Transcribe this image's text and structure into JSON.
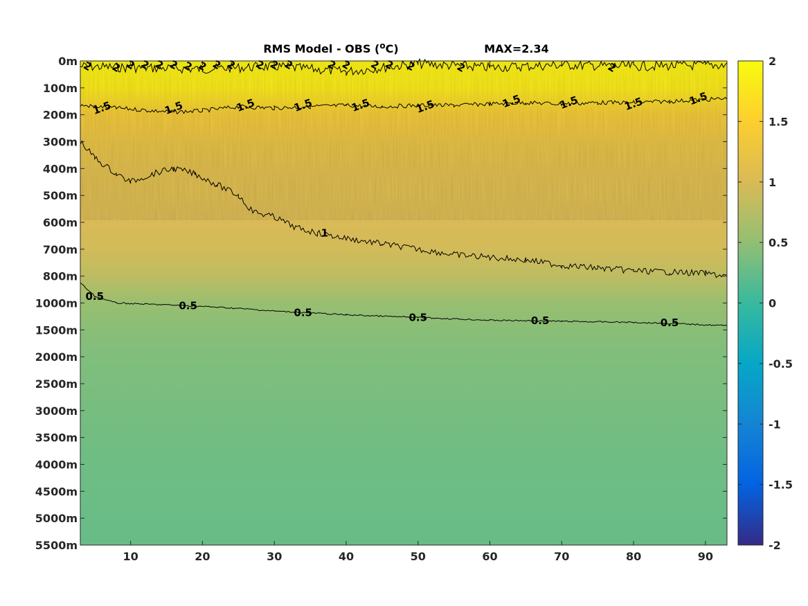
{
  "chart_data": {
    "type": "heatmap",
    "title_prefix": "RMS Model - OBS (",
    "title_unit_sup": "o",
    "title_unit": "C",
    "title_suffix": ")",
    "max_label": "MAX=2.34",
    "x_ticks": [
      "10",
      "20",
      "30",
      "40",
      "50",
      "60",
      "70",
      "80",
      "90"
    ],
    "x_tick_values": [
      10,
      20,
      30,
      40,
      50,
      60,
      70,
      80,
      90
    ],
    "xlim": [
      3,
      93
    ],
    "y_ticks": [
      "0m",
      "100m",
      "200m",
      "300m",
      "400m",
      "500m",
      "600m",
      "700m",
      "800m",
      "1000m",
      "1500m",
      "2000m",
      "2500m",
      "3000m",
      "3500m",
      "4000m",
      "4500m",
      "5000m",
      "5500m"
    ],
    "colorbar": {
      "ticks": [
        "2",
        "1.5",
        "1",
        "0.5",
        "0",
        "-0.5",
        "-1",
        "-1.5",
        "-2"
      ],
      "tick_values": [
        2,
        1.5,
        1,
        0.5,
        0,
        -0.5,
        -1,
        -1.5,
        -2
      ],
      "clim": [
        -2,
        2
      ],
      "colormap": "parula"
    },
    "depth_profile": [
      {
        "depth": "0m",
        "value": 1.9
      },
      {
        "depth": "100m",
        "value": 1.8
      },
      {
        "depth": "200m",
        "value": 1.35
      },
      {
        "depth": "300m",
        "value": 1.2
      },
      {
        "depth": "400m",
        "value": 1.1
      },
      {
        "depth": "500m",
        "value": 1.05
      },
      {
        "depth": "600m",
        "value": 1.0
      },
      {
        "depth": "700m",
        "value": 0.95
      },
      {
        "depth": "800m",
        "value": 0.8
      },
      {
        "depth": "1000m",
        "value": 0.55
      },
      {
        "depth": "1500m",
        "value": 0.45
      },
      {
        "depth": "2000m",
        "value": 0.4
      },
      {
        "depth": "3000m",
        "value": 0.35
      },
      {
        "depth": "4000m",
        "value": 0.3
      },
      {
        "depth": "5500m",
        "value": 0.27
      }
    ],
    "contours": [
      {
        "level": "2",
        "points": [
          [
            3,
            20
          ],
          [
            10,
            25
          ],
          [
            20,
            30
          ],
          [
            30,
            20
          ],
          [
            40,
            40
          ],
          [
            50,
            10
          ],
          [
            60,
            25
          ],
          [
            70,
            15
          ],
          [
            80,
            20
          ],
          [
            93,
            15
          ]
        ],
        "label_positions": [
          [
            4,
            20
          ],
          [
            8,
            25
          ],
          [
            10,
            15
          ],
          [
            12,
            15
          ],
          [
            14,
            15
          ],
          [
            16,
            15
          ],
          [
            18,
            20
          ],
          [
            20,
            20
          ],
          [
            22,
            15
          ],
          [
            24,
            15
          ],
          [
            28,
            15
          ],
          [
            30,
            15
          ],
          [
            32,
            15
          ],
          [
            38,
            15
          ],
          [
            40,
            15
          ],
          [
            44,
            15
          ],
          [
            46,
            15
          ],
          [
            49,
            20
          ],
          [
            56,
            25
          ],
          [
            77,
            25
          ]
        ]
      },
      {
        "level": "1.5",
        "points": [
          [
            3,
            165
          ],
          [
            8,
            175
          ],
          [
            13,
            185
          ],
          [
            16,
            190
          ],
          [
            20,
            185
          ],
          [
            25,
            170
          ],
          [
            30,
            175
          ],
          [
            35,
            170
          ],
          [
            40,
            165
          ],
          [
            45,
            170
          ],
          [
            50,
            165
          ],
          [
            55,
            165
          ],
          [
            60,
            160
          ],
          [
            65,
            155
          ],
          [
            70,
            160
          ],
          [
            75,
            155
          ],
          [
            80,
            155
          ],
          [
            85,
            150
          ],
          [
            93,
            140
          ]
        ],
        "label_positions": [
          [
            6,
            175
          ],
          [
            16,
            175
          ],
          [
            26,
            165
          ],
          [
            34,
            165
          ],
          [
            42,
            165
          ],
          [
            51,
            170
          ],
          [
            63,
            150
          ],
          [
            71,
            155
          ],
          [
            80,
            160
          ],
          [
            89,
            140
          ]
        ]
      },
      {
        "level": "1",
        "points": [
          [
            3,
            300
          ],
          [
            5,
            360
          ],
          [
            8,
            420
          ],
          [
            10,
            450
          ],
          [
            13,
            420
          ],
          [
            16,
            400
          ],
          [
            19,
            420
          ],
          [
            22,
            460
          ],
          [
            25,
            500
          ],
          [
            27,
            560
          ],
          [
            30,
            580
          ],
          [
            33,
            620
          ],
          [
            36,
            640
          ],
          [
            40,
            660
          ],
          [
            45,
            680
          ],
          [
            50,
            700
          ],
          [
            55,
            720
          ],
          [
            60,
            730
          ],
          [
            65,
            740
          ],
          [
            70,
            760
          ],
          [
            75,
            770
          ],
          [
            80,
            780
          ],
          [
            85,
            785
          ],
          [
            90,
            790
          ],
          [
            93,
            800
          ]
        ],
        "label_positions": [
          [
            37,
            640
          ]
        ]
      },
      {
        "level": "0.5",
        "points": [
          [
            3,
            850
          ],
          [
            5,
            950
          ],
          [
            8,
            1000
          ],
          [
            12,
            1020
          ],
          [
            18,
            1050
          ],
          [
            25,
            1100
          ],
          [
            30,
            1150
          ],
          [
            40,
            1220
          ],
          [
            50,
            1270
          ],
          [
            60,
            1320
          ],
          [
            70,
            1340
          ],
          [
            80,
            1360
          ],
          [
            85,
            1380
          ],
          [
            93,
            1420
          ]
        ],
        "label_positions": [
          [
            5,
            950
          ],
          [
            18,
            1050
          ],
          [
            34,
            1180
          ],
          [
            50,
            1270
          ],
          [
            67,
            1330
          ],
          [
            85,
            1370
          ]
        ]
      }
    ]
  }
}
